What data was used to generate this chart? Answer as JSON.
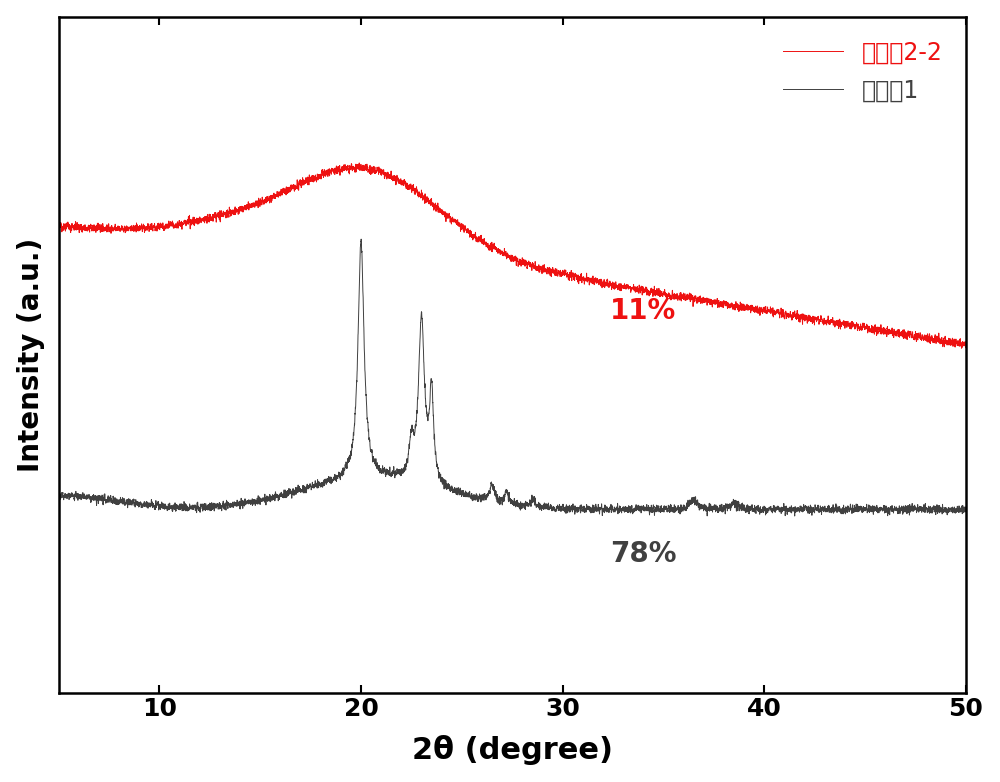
{
  "xlabel": "2θ (degree)",
  "ylabel": "Intensity (a.u.)",
  "xlim": [
    5,
    50
  ],
  "x_ticks": [
    10,
    20,
    30,
    40,
    50
  ],
  "red_label": "实施例2-2",
  "black_label": "对比例1",
  "red_annotation": "11%",
  "black_annotation": "78%",
  "red_color": "#ee1111",
  "black_color": "#404040",
  "background_color": "#ffffff",
  "figsize": [
    10.0,
    7.82
  ],
  "dpi": 100
}
